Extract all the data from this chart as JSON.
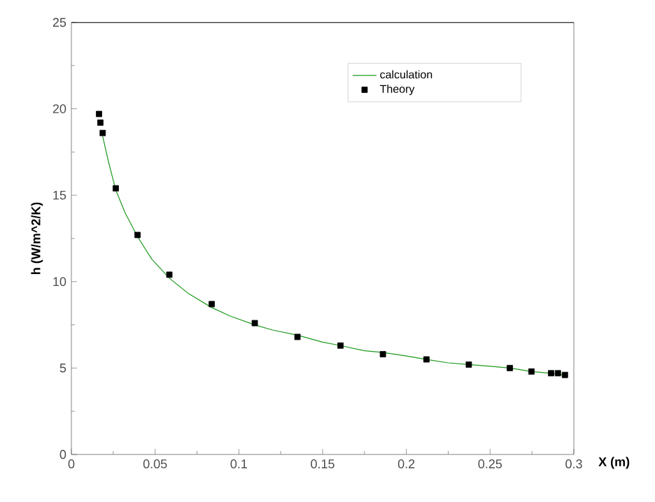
{
  "chart_data": {
    "type": "line",
    "xlabel": "X (m)",
    "ylabel": "h (W/m^2/K)",
    "xlim": [
      0,
      0.3
    ],
    "ylim": [
      0,
      25
    ],
    "xticks": [
      0,
      0.05,
      0.1,
      0.15,
      0.2,
      0.25,
      0.3
    ],
    "yticks": [
      0,
      5,
      10,
      15,
      20,
      25
    ],
    "grid": false,
    "legend": "top right",
    "series": [
      {
        "name": "calculation",
        "color": "#1e9a1e",
        "marker": "none",
        "line_style": "solid",
        "x": [
          0.0187,
          0.022,
          0.0265,
          0.032,
          0.0395,
          0.048,
          0.0585,
          0.07,
          0.0838,
          0.095,
          0.1095,
          0.12,
          0.135,
          0.15,
          0.1607,
          0.175,
          0.186,
          0.2,
          0.212,
          0.225,
          0.2373,
          0.25,
          0.2618,
          0.2747,
          0.2864,
          0.2947
        ],
        "values": [
          18.4,
          17.0,
          15.3,
          14.0,
          12.6,
          11.3,
          10.2,
          9.3,
          8.5,
          8.0,
          7.5,
          7.2,
          6.9,
          6.5,
          6.3,
          6.0,
          5.9,
          5.7,
          5.5,
          5.3,
          5.2,
          5.1,
          5.0,
          4.8,
          4.7,
          4.6
        ]
      },
      {
        "name": "Theory",
        "type": "scatter",
        "color": "#000000",
        "marker": "square",
        "x": [
          0.0165,
          0.0173,
          0.0187,
          0.0265,
          0.0395,
          0.0585,
          0.0838,
          0.1095,
          0.135,
          0.1607,
          0.186,
          0.212,
          0.2373,
          0.2618,
          0.2747,
          0.2864,
          0.2905,
          0.2947
        ],
        "values": [
          19.7,
          19.2,
          18.6,
          15.4,
          12.7,
          10.4,
          8.7,
          7.6,
          6.8,
          6.3,
          5.8,
          5.5,
          5.2,
          5.0,
          4.8,
          4.7,
          4.7,
          4.6
        ]
      }
    ]
  }
}
